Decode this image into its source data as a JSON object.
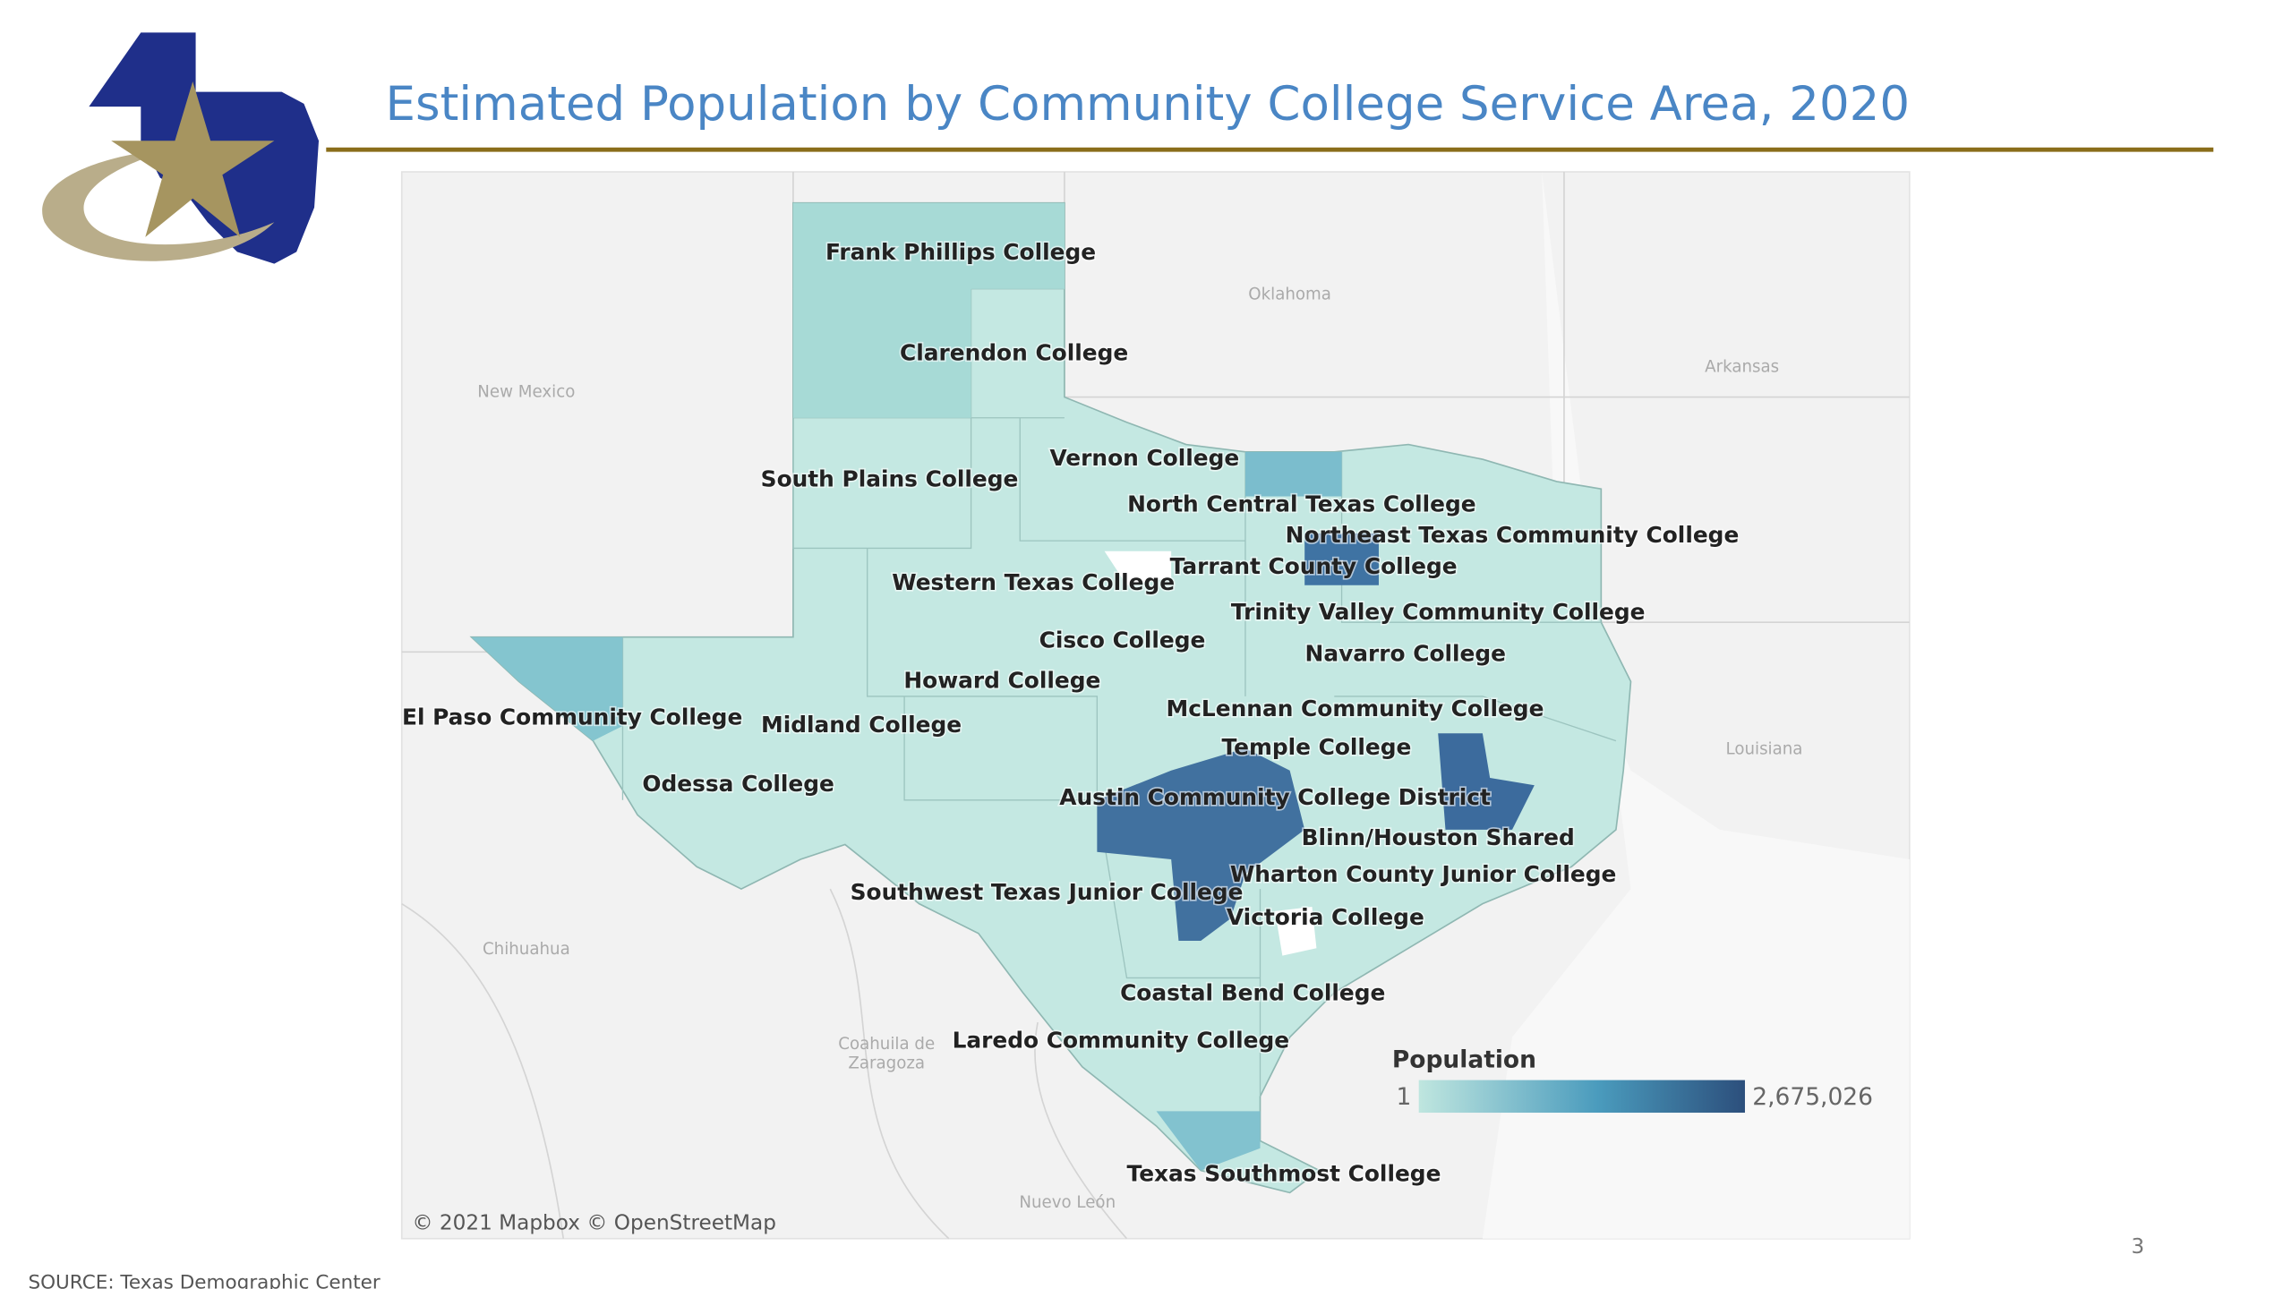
{
  "header": {
    "title": "Estimated Population by Community College Service Area, 2020"
  },
  "map": {
    "college_labels": [
      "Frank Phillips College",
      "Clarendon College",
      "Vernon College",
      "South Plains College",
      "North Central Texas College",
      "Northeast Texas Community College",
      "Tarrant County College",
      "Western Texas College",
      "Trinity Valley Community College",
      "Cisco College",
      "Navarro College",
      "Howard College",
      "McLennan Community College",
      "El Paso Community College",
      "Midland College",
      "Temple College",
      "Odessa College",
      "Austin Community College District",
      "Blinn/Houston Shared",
      "Wharton County Junior College",
      "Southwest Texas Junior College",
      "Victoria College",
      "Coastal Bend College",
      "Laredo Community College",
      "Texas Southmost College"
    ],
    "region_labels": [
      "New Mexico",
      "Oklahoma",
      "Arkansas",
      "Louisiana",
      "Chihuahua",
      "Coahuila de",
      "Zaragoza",
      "Nuevo León"
    ],
    "attribution": "© 2021 Mapbox © OpenStreetMap",
    "legend": {
      "title": "Population",
      "min": 1,
      "max": {
        "value": 2675026,
        "label": "2,675,026"
      }
    }
  },
  "footer": {
    "source": "SOURCE: Texas Demographic Center",
    "page_number": "3"
  }
}
